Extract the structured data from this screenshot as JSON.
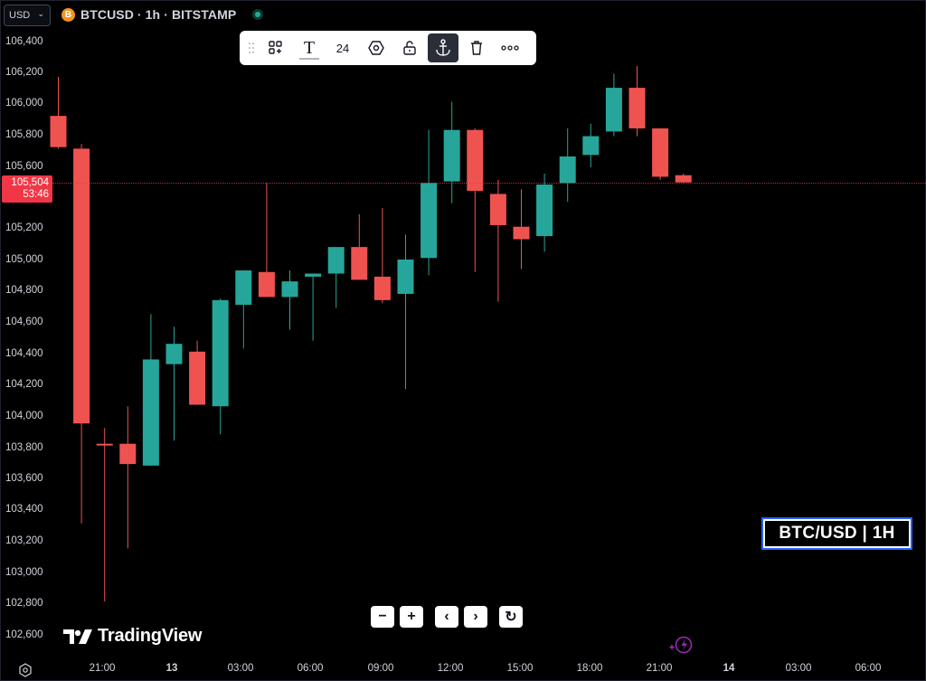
{
  "header": {
    "currency": "USD",
    "symbol": "BTCUSD · 1h · BITSTAMP",
    "coin_icon": "B"
  },
  "toolbar": {
    "items": [
      {
        "name": "drag-handle-icon"
      },
      {
        "name": "object-tree-icon"
      },
      {
        "name": "text-icon",
        "glyph": "T"
      },
      {
        "name": "font-size",
        "label": "24"
      },
      {
        "name": "hexagon-icon"
      },
      {
        "name": "lock-icon"
      },
      {
        "name": "anchor-icon",
        "active": true
      },
      {
        "name": "trash-icon"
      },
      {
        "name": "more-icon"
      }
    ]
  },
  "price_scale": {
    "labels": [
      "106,400",
      "106,200",
      "106,000",
      "105,800",
      "105,600",
      "105,504",
      "105,200",
      "105,000",
      "104,800",
      "104,600",
      "104,400",
      "104,200",
      "104,000",
      "103,800",
      "103,600",
      "103,400",
      "103,200",
      "103,000",
      "102,800",
      "102,600"
    ],
    "current_price": "105,504",
    "countdown": "53:46"
  },
  "time_scale": {
    "labels": [
      {
        "text": "21:00",
        "bold": false
      },
      {
        "text": "13",
        "bold": true
      },
      {
        "text": "03:00",
        "bold": false
      },
      {
        "text": "06:00",
        "bold": false
      },
      {
        "text": "09:00",
        "bold": false
      },
      {
        "text": "12:00",
        "bold": false
      },
      {
        "text": "15:00",
        "bold": false
      },
      {
        "text": "18:00",
        "bold": false
      },
      {
        "text": "21:00",
        "bold": false
      },
      {
        "text": "14",
        "bold": true
      },
      {
        "text": "03:00",
        "bold": false
      },
      {
        "text": "06:00",
        "bold": false
      }
    ]
  },
  "colors": {
    "up": "#26a69a",
    "down": "#ef5350",
    "background": "#000000",
    "accent": "#2962ff"
  },
  "chart_data": {
    "type": "candlestick",
    "title": "BTCUSD · 1h · BITSTAMP",
    "candles": [
      {
        "o": 105930,
        "h": 106180,
        "l": 105720,
        "c": 105730
      },
      {
        "o": 105720,
        "h": 105750,
        "l": 103320,
        "c": 103960
      },
      {
        "o": 103830,
        "h": 103930,
        "l": 102820,
        "c": 103820
      },
      {
        "o": 103830,
        "h": 104070,
        "l": 103160,
        "c": 103700
      },
      {
        "o": 103690,
        "h": 104660,
        "l": 103690,
        "c": 104370
      },
      {
        "o": 104340,
        "h": 104580,
        "l": 103850,
        "c": 104470
      },
      {
        "o": 104420,
        "h": 104490,
        "l": 104080,
        "c": 104080
      },
      {
        "o": 104070,
        "h": 104760,
        "l": 103890,
        "c": 104750
      },
      {
        "o": 104720,
        "h": 104940,
        "l": 104440,
        "c": 104940
      },
      {
        "o": 104930,
        "h": 105500,
        "l": 104770,
        "c": 104770
      },
      {
        "o": 104770,
        "h": 104940,
        "l": 104560,
        "c": 104870
      },
      {
        "o": 104900,
        "h": 104920,
        "l": 104490,
        "c": 104920
      },
      {
        "o": 104920,
        "h": 105090,
        "l": 104700,
        "c": 105090
      },
      {
        "o": 105090,
        "h": 105300,
        "l": 104880,
        "c": 104880
      },
      {
        "o": 104900,
        "h": 105340,
        "l": 104730,
        "c": 104750
      },
      {
        "o": 104790,
        "h": 105170,
        "l": 104180,
        "c": 105010
      },
      {
        "o": 105020,
        "h": 105840,
        "l": 104910,
        "c": 105500
      },
      {
        "o": 105510,
        "h": 106020,
        "l": 105370,
        "c": 105840
      },
      {
        "o": 105840,
        "h": 105850,
        "l": 104930,
        "c": 105450
      },
      {
        "o": 105430,
        "h": 105520,
        "l": 104740,
        "c": 105230
      },
      {
        "o": 105220,
        "h": 105460,
        "l": 104950,
        "c": 105140
      },
      {
        "o": 105160,
        "h": 105560,
        "l": 105060,
        "c": 105490
      },
      {
        "o": 105500,
        "h": 105850,
        "l": 105380,
        "c": 105670
      },
      {
        "o": 105680,
        "h": 105880,
        "l": 105600,
        "c": 105800
      },
      {
        "o": 105830,
        "h": 106200,
        "l": 105800,
        "c": 106110
      },
      {
        "o": 106110,
        "h": 106250,
        "l": 105800,
        "c": 105850
      },
      {
        "o": 105850,
        "h": 105850,
        "l": 105520,
        "c": 105540
      },
      {
        "o": 105550,
        "h": 105560,
        "l": 105500,
        "c": 105504
      }
    ]
  },
  "watermark": {
    "brand": "TradingView"
  },
  "nav_buttons": [
    {
      "name": "zoom-out-button",
      "glyph": "−"
    },
    {
      "name": "zoom-in-button",
      "glyph": "+"
    },
    {
      "name": "scroll-left-button",
      "glyph": "‹"
    },
    {
      "name": "scroll-right-button",
      "glyph": "›"
    },
    {
      "name": "reset-button",
      "glyph": "↻"
    }
  ],
  "caption": "BTC/USD | 1H"
}
